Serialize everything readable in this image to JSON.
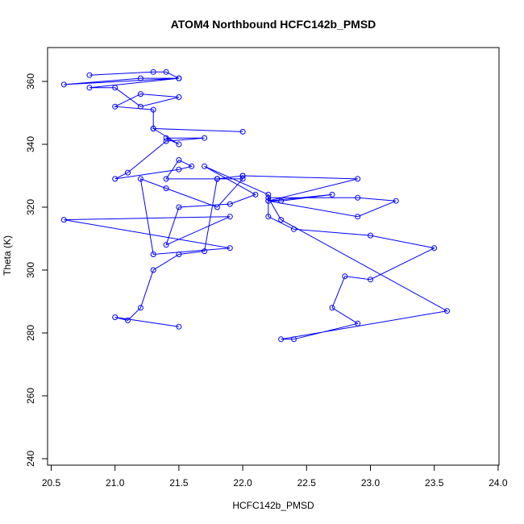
{
  "colors": {
    "series": "#0000ff",
    "axis": "#000000",
    "background": "#ffffff"
  },
  "chart_data": {
    "type": "line",
    "title": "ATOM4 Northbound HCFC142b_PMSD",
    "xlabel": "HCFC142b_PMSD",
    "ylabel": "Theta (K)",
    "xlim": [
      20.5,
      24.0
    ],
    "ylim": [
      240,
      370
    ],
    "x_ticks": [
      20.5,
      21.0,
      21.5,
      22.0,
      22.5,
      23.0,
      23.5,
      24.0
    ],
    "x_tick_labels": [
      "20.5",
      "21.0",
      "21.5",
      "22.0",
      "22.5",
      "23.0",
      "23.5",
      "24.0"
    ],
    "y_ticks": [
      240,
      260,
      280,
      300,
      320,
      340,
      360
    ],
    "y_tick_labels": [
      "240",
      "260",
      "280",
      "300",
      "320",
      "340",
      "360"
    ],
    "grid": false,
    "legend": false,
    "markers": "open-circle",
    "series": [
      {
        "x": [
          20.8,
          21.3,
          21.4,
          21.5,
          21.2,
          20.6,
          21.5,
          20.8,
          21.0,
          21.2,
          21.5,
          21.2,
          21.0,
          21.3,
          21.3,
          22.0,
          21.3,
          21.5,
          21.4,
          21.7,
          21.4,
          21.1,
          21.0,
          21.5,
          21.6,
          21.5,
          21.4,
          21.8,
          22.0,
          21.8,
          21.4,
          21.2,
          21.3,
          21.9,
          20.6,
          21.9,
          21.4,
          21.5,
          21.9,
          22.1,
          21.7,
          22.2,
          22.2,
          22.4,
          23.0,
          23.5,
          23.0,
          22.8,
          22.7,
          22.9,
          22.4,
          22.3,
          23.6,
          22.3,
          22.2,
          22.9,
          23.2,
          22.9,
          22.2,
          22.7,
          22.3,
          22.2,
          22.9,
          22.0,
          21.8,
          22.0,
          21.8,
          21.7,
          21.5,
          21.3,
          21.2,
          21.1,
          21.0,
          21.5
        ],
        "y": [
          362,
          363,
          363,
          361,
          361,
          359,
          361,
          358,
          358,
          352,
          355,
          356,
          352,
          351,
          345,
          344,
          345,
          340,
          342,
          342,
          341,
          331,
          329,
          332,
          333,
          335,
          329,
          329,
          329,
          320,
          326,
          329,
          305,
          307,
          316,
          317,
          308,
          320,
          321,
          324,
          333,
          324,
          317,
          313,
          311,
          307,
          297,
          298,
          288,
          283,
          278,
          278,
          287,
          316,
          323,
          323,
          322,
          317,
          322,
          324,
          322,
          322,
          329,
          330,
          329,
          330,
          329,
          306,
          305,
          300,
          288,
          284,
          285,
          282
        ]
      }
    ]
  }
}
